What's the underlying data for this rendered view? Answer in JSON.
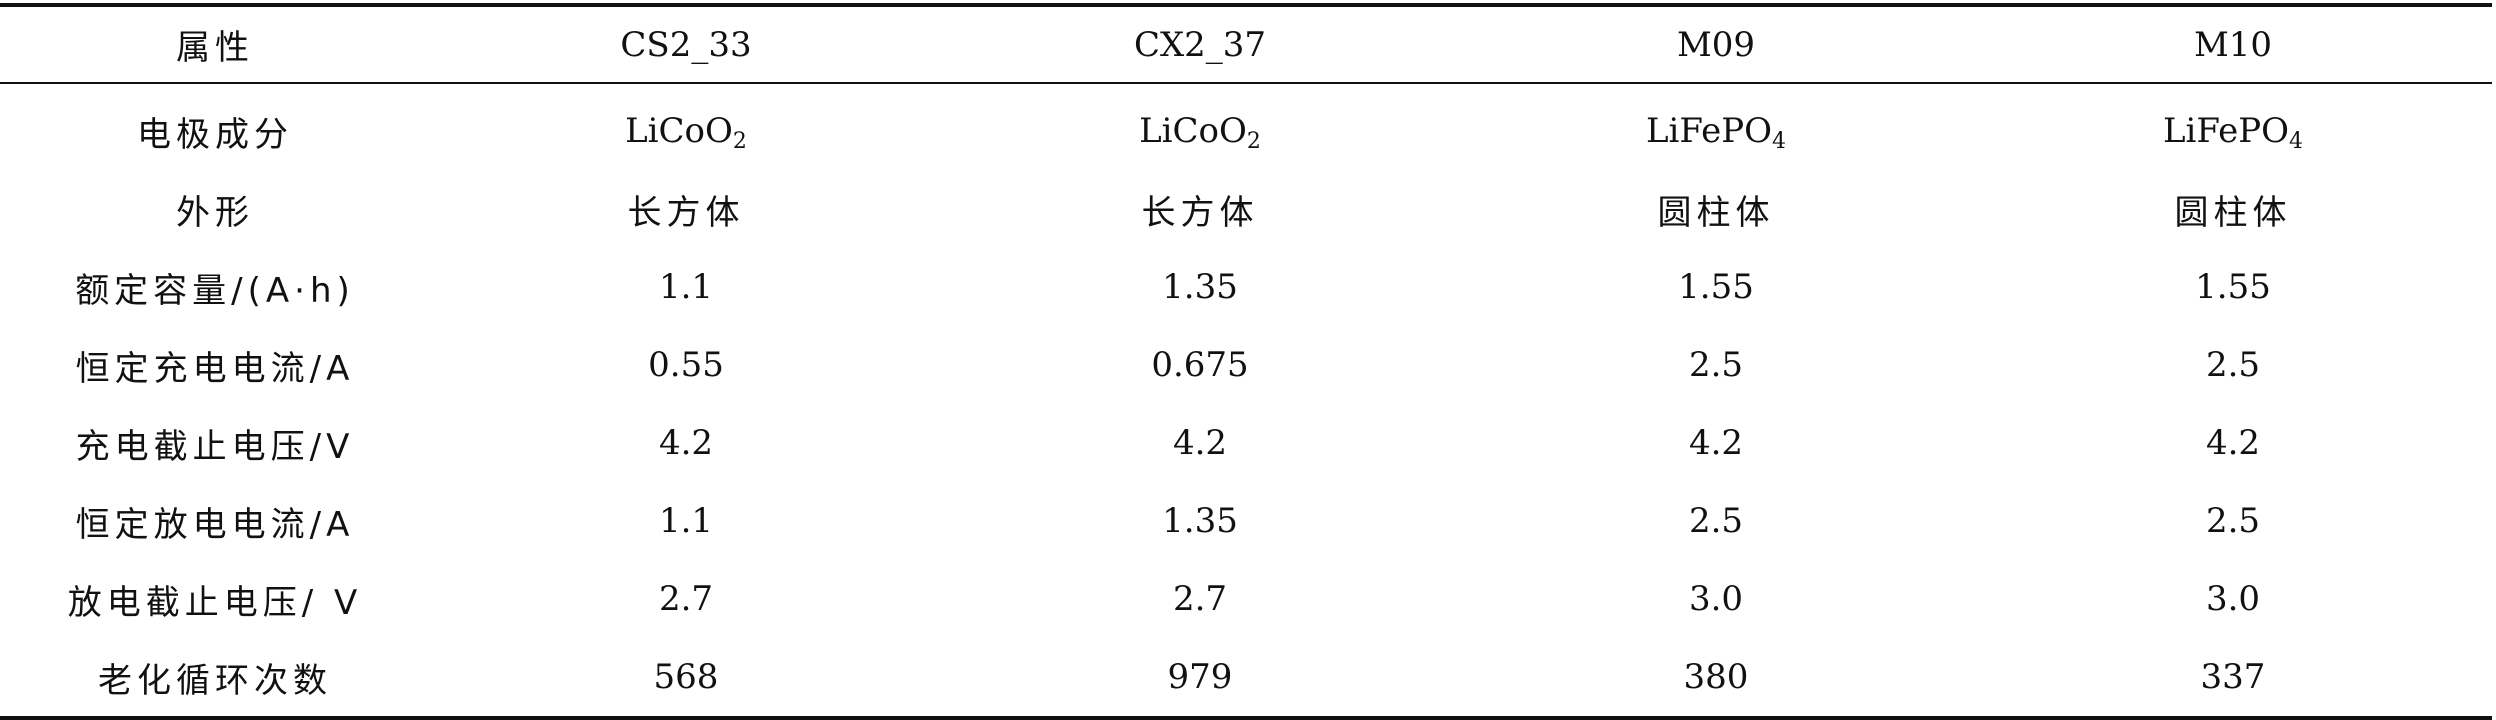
{
  "table": {
    "headers": [
      "属性",
      "CS2_33",
      "CX2_37",
      "M09",
      "M10"
    ],
    "rows": [
      {
        "label": "电极成分",
        "cells": [
          {
            "base": "LiCoO",
            "sub": "2"
          },
          {
            "base": "LiCoO",
            "sub": "2"
          },
          {
            "base": "LiFePO",
            "sub": "4"
          },
          {
            "base": "LiFePO",
            "sub": "4"
          }
        ]
      },
      {
        "label": "外形",
        "cells": [
          {
            "base": "长方体"
          },
          {
            "base": "长方体"
          },
          {
            "base": "圆柱体"
          },
          {
            "base": "圆柱体"
          }
        ]
      },
      {
        "label": "额定容量/(A·h)",
        "cells": [
          {
            "base": "1.1"
          },
          {
            "base": "1.35"
          },
          {
            "base": "1.55"
          },
          {
            "base": "1.55"
          }
        ]
      },
      {
        "label": "恒定充电电流/A",
        "cells": [
          {
            "base": "0.55"
          },
          {
            "base": "0.675"
          },
          {
            "base": "2.5"
          },
          {
            "base": "2.5"
          }
        ]
      },
      {
        "label": "充电截止电压/V",
        "cells": [
          {
            "base": "4.2"
          },
          {
            "base": "4.2"
          },
          {
            "base": "4.2"
          },
          {
            "base": "4.2"
          }
        ]
      },
      {
        "label": "恒定放电电流/A",
        "cells": [
          {
            "base": "1.1"
          },
          {
            "base": "1.35"
          },
          {
            "base": "2.5"
          },
          {
            "base": "2.5"
          }
        ]
      },
      {
        "label": "放电截止电压/ V",
        "cells": [
          {
            "base": "2.7"
          },
          {
            "base": "2.7"
          },
          {
            "base": "3.0"
          },
          {
            "base": "3.0"
          }
        ]
      },
      {
        "label": "老化循环次数",
        "cells": [
          {
            "base": "568"
          },
          {
            "base": "979"
          },
          {
            "base": "380"
          },
          {
            "base": "337"
          }
        ]
      }
    ]
  }
}
